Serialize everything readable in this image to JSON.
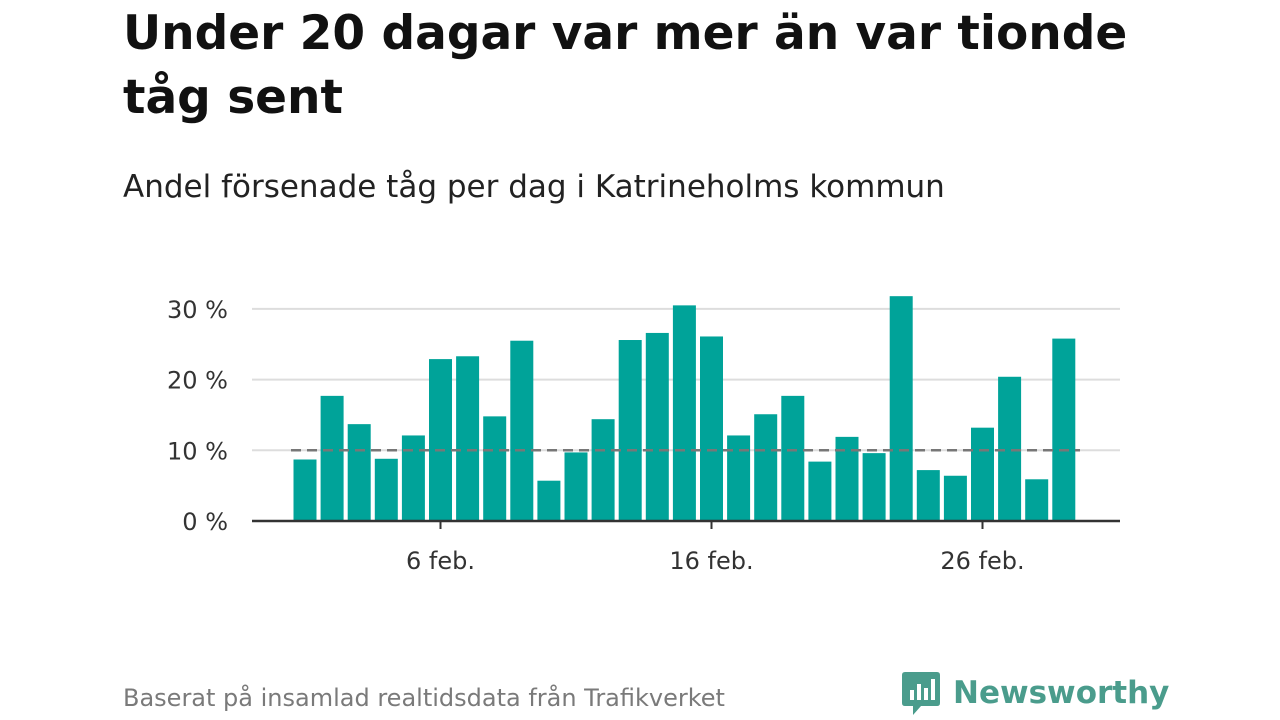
{
  "header": {
    "title": "Under 20 dagar var mer än var tionde tåg sent",
    "subtitle": "Andel försenade tåg per dag i Katrineholms kommun"
  },
  "footer": {
    "source": "Baserat på insamlad realtidsdata från Trafikverket",
    "brand": "Newsworthy"
  },
  "colors": {
    "bar": "#00a399",
    "reference_line": "#777777",
    "gridline": "#dddddd",
    "axis": "#333333",
    "brand": "#4a9c8c"
  },
  "chart_data": {
    "type": "bar",
    "x": [
      "2024-02-01",
      "2024-02-02",
      "2024-02-03",
      "2024-02-04",
      "2024-02-05",
      "2024-02-06",
      "2024-02-07",
      "2024-02-08",
      "2024-02-09",
      "2024-02-10",
      "2024-02-11",
      "2024-02-12",
      "2024-02-13",
      "2024-02-14",
      "2024-02-15",
      "2024-02-16",
      "2024-02-17",
      "2024-02-18",
      "2024-02-19",
      "2024-02-20",
      "2024-02-21",
      "2024-02-22",
      "2024-02-23",
      "2024-02-24",
      "2024-02-25",
      "2024-02-26",
      "2024-02-27",
      "2024-02-28",
      "2024-02-29"
    ],
    "values": [
      8.7,
      17.7,
      13.7,
      8.8,
      12.1,
      22.9,
      23.3,
      14.8,
      25.5,
      5.7,
      9.7,
      14.4,
      25.6,
      26.6,
      30.5,
      26.1,
      12.1,
      15.1,
      17.7,
      8.4,
      11.9,
      9.6,
      31.8,
      7.2,
      6.4,
      13.2,
      20.4,
      5.9,
      25.8
    ],
    "x_ticks": [
      {
        "label": "6 feb.",
        "date": "2024-02-06"
      },
      {
        "label": "16 feb.",
        "date": "2024-02-16"
      },
      {
        "label": "26 feb.",
        "date": "2024-02-26"
      }
    ],
    "y_ticks": [
      {
        "label": "0 %",
        "value": 0
      },
      {
        "label": "10 %",
        "value": 10
      },
      {
        "label": "20 %",
        "value": 20
      },
      {
        "label": "30 %",
        "value": 30
      }
    ],
    "reference_line": 10,
    "ylim": [
      0,
      33
    ],
    "grid": true
  }
}
